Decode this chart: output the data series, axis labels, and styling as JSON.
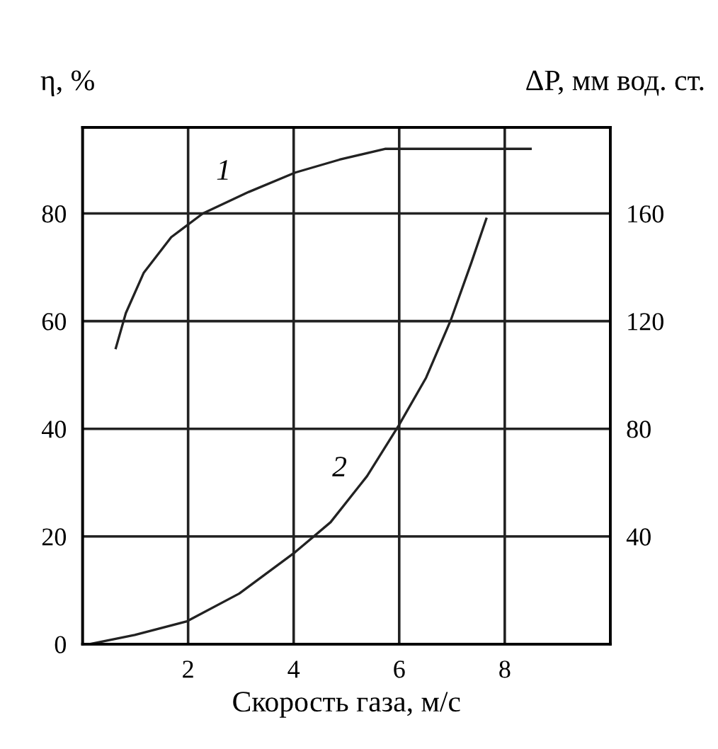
{
  "chart_data": {
    "type": "line",
    "xlabel": "Скорость газа, м/с",
    "ylabel": "η, %",
    "y2label": "ΔP, мм вод. ст.",
    "xlim": [
      0,
      10
    ],
    "xticks": [
      2,
      4,
      6,
      8
    ],
    "ylim": [
      0,
      96
    ],
    "yticks": [
      0,
      20,
      40,
      60,
      80
    ],
    "y2lim": [
      0,
      192
    ],
    "y2ticks": [
      40,
      80,
      120,
      160
    ],
    "grid": true,
    "legend": false,
    "marker": "none",
    "line_style": "solid",
    "series": [
      {
        "color": "#222222",
        "x": [
          0.63,
          0.82,
          1.16,
          1.68,
          2.28,
          3.15,
          4.03,
          4.87,
          5.73,
          6.5,
          7.5,
          8.49
        ],
        "values": [
          55,
          61.5,
          69,
          75.6,
          80,
          84,
          87.6,
          90,
          92,
          92,
          92,
          92
        ]
      },
      {
        "color": "#222222",
        "axis": "y2",
        "x": [
          0.13,
          0.99,
          1.98,
          2.97,
          4.03,
          4.7,
          5.39,
          5.99,
          6.51,
          6.98,
          7.37,
          7.65
        ],
        "values": [
          0,
          3.4,
          8.5,
          18.8,
          34.2,
          45.3,
          62.4,
          81.2,
          99,
          120.5,
          141.9,
          158
        ]
      }
    ],
    "annotations": [
      {
        "text": "1",
        "x": 2.67,
        "y": 87.6
      },
      {
        "text": "2",
        "x": 4.87,
        "y": 32.5
      }
    ]
  }
}
